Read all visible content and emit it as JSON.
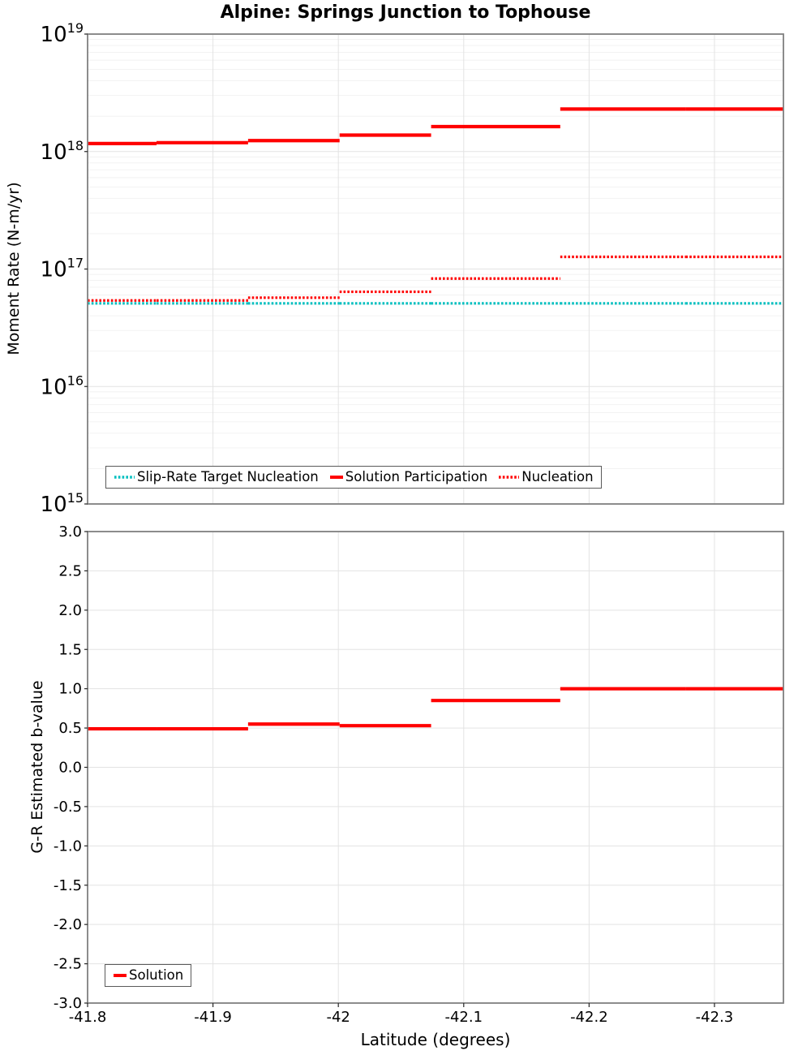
{
  "page_title": "Alpine: Springs Junction to Tophouse",
  "colors": {
    "red": "#ff0000",
    "teal": "#00bfbf",
    "grid_major": "#e3e3e3",
    "grid_minor": "#f1f1f1",
    "axis_border": "#808080",
    "tick": "#262626",
    "text": "#000000",
    "background": "#ffffff"
  },
  "x_axis": {
    "label": "Latitude (degrees)",
    "tick_values": [
      -41.8,
      -41.9,
      -42.0,
      -42.1,
      -42.2,
      -42.3
    ],
    "tick_labels": [
      "-41.8",
      "-41.9",
      "-42",
      "-42.1",
      "-42.2",
      "-42.3"
    ],
    "range": [
      -41.8,
      -42.355
    ]
  },
  "chart_data": [
    {
      "type": "line",
      "subtype": "step",
      "name": "moment-rate",
      "title": "Alpine: Springs Junction to Tophouse",
      "xlabel": "Latitude (degrees)",
      "ylabel": "Moment Rate (N-m/yr)",
      "yscale": "log",
      "ylim": [
        1000000000000000.0,
        1e+19
      ],
      "ytick_exponents": [
        19,
        18,
        17,
        16,
        15
      ],
      "grid": "on",
      "legend_position": "bottom-center-inside",
      "x_boundaries": [
        -41.8,
        -41.855,
        -41.928,
        -42.001,
        -42.074,
        -42.177,
        -42.277,
        -42.355
      ],
      "series": [
        {
          "name": "Slip-Rate Target Nucleation",
          "line": "dotted",
          "color_key": "teal",
          "values": [
            5.1e+16,
            5.1e+16,
            5.1e+16,
            5.1e+16,
            5.1e+16,
            5.1e+16,
            5.1e+16
          ]
        },
        {
          "name": "Solution Participation",
          "line": "solid",
          "color_key": "red",
          "values": [
            1.17e+18,
            1.19e+18,
            1.24e+18,
            1.38e+18,
            1.63e+18,
            2.3e+18,
            2.3e+18
          ]
        },
        {
          "name": "Nucleation",
          "line": "dotted",
          "color_key": "red",
          "values": [
            5.4e+16,
            5.4e+16,
            5.7e+16,
            6.4e+16,
            8.3e+16,
            1.27e+17,
            1.27e+17
          ]
        }
      ],
      "legend": {
        "entries": [
          {
            "label": "Slip-Rate Target Nucleation",
            "line": "dotted",
            "color_key": "teal"
          },
          {
            "label": "Solution Participation",
            "line": "solid",
            "color_key": "red"
          },
          {
            "label": "Nucleation",
            "line": "dotted",
            "color_key": "red"
          }
        ]
      }
    },
    {
      "type": "line",
      "subtype": "step",
      "name": "b-value",
      "xlabel": "Latitude (degrees)",
      "ylabel": "G-R Estimated b-value",
      "yscale": "linear",
      "ylim": [
        -3.0,
        3.0
      ],
      "ytick_values": [
        3.0,
        2.5,
        2.0,
        1.5,
        1.0,
        0.5,
        0.0,
        -0.5,
        -1.0,
        -1.5,
        -2.0,
        -2.5,
        -3.0
      ],
      "ytick_labels": [
        "3.0",
        "2.5",
        "2.0",
        "1.5",
        "1.0",
        "0.5",
        "0.0",
        "-0.5",
        "-1.0",
        "-1.5",
        "-2.0",
        "-2.5",
        "-3.0"
      ],
      "grid": "on",
      "legend_position": "bottom-left-inside",
      "x_boundaries": [
        -41.8,
        -41.855,
        -41.928,
        -42.001,
        -42.074,
        -42.177,
        -42.277,
        -42.355
      ],
      "series": [
        {
          "name": "Solution",
          "line": "solid",
          "color_key": "red",
          "values": [
            0.49,
            0.49,
            0.55,
            0.53,
            0.85,
            1.0,
            1.0
          ]
        }
      ],
      "legend": {
        "entries": [
          {
            "label": "Solution",
            "line": "solid",
            "color_key": "red"
          }
        ]
      }
    }
  ]
}
